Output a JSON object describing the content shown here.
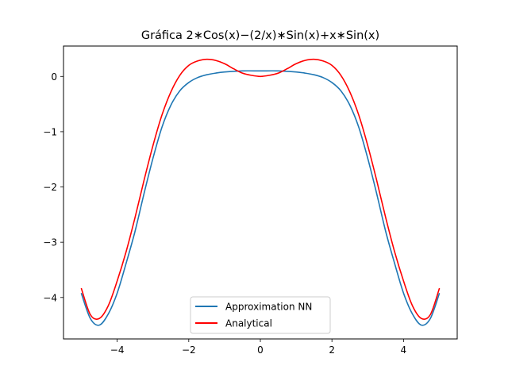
{
  "chart_data": {
    "type": "line",
    "title": "Gráfica 2∗Cos(x)−(2/x)∗Sin(x)+x∗Sin(x)",
    "xlabel": "",
    "ylabel": "",
    "xlim": [
      -5.5,
      5.5
    ],
    "ylim": [
      -4.75,
      0.55
    ],
    "xticks": [
      -4,
      -2,
      0,
      2,
      4
    ],
    "yticks": [
      0,
      -1,
      -2,
      -3,
      -4
    ],
    "xtick_labels": [
      "−4",
      "−2",
      "0",
      "2",
      "4"
    ],
    "ytick_labels": [
      "0",
      "−1",
      "−2",
      "−3",
      "−4"
    ],
    "grid": false,
    "legend_position": "bottom-center",
    "series": [
      {
        "name": "Approximation NN",
        "color": "#1f77b4",
        "x": [
          -5.0,
          -4.75,
          -4.5,
          -4.25,
          -4.0,
          -3.75,
          -3.5,
          -3.25,
          -3.0,
          -2.75,
          -2.5,
          -2.25,
          -2.0,
          -1.75,
          -1.5,
          -1.25,
          -1.0,
          -0.5,
          0.0,
          0.5,
          1.0,
          1.25,
          1.5,
          1.75,
          2.0,
          2.25,
          2.5,
          2.75,
          3.0,
          3.25,
          3.5,
          3.75,
          4.0,
          4.25,
          4.5,
          4.75,
          5.0
        ],
        "y": [
          -3.93,
          -4.38,
          -4.5,
          -4.3,
          -3.92,
          -3.38,
          -2.8,
          -2.12,
          -1.48,
          -0.92,
          -0.52,
          -0.26,
          -0.11,
          -0.02,
          0.03,
          0.06,
          0.08,
          0.1,
          0.1,
          0.1,
          0.08,
          0.06,
          0.03,
          -0.02,
          -0.11,
          -0.26,
          -0.52,
          -0.92,
          -1.48,
          -2.12,
          -2.8,
          -3.38,
          -3.92,
          -4.3,
          -4.5,
          -4.38,
          -3.93
        ]
      },
      {
        "name": "Analytical",
        "color": "#ff0000",
        "x": [
          -5.0,
          -4.75,
          -4.5,
          -4.25,
          -4.0,
          -3.75,
          -3.5,
          -3.25,
          -3.0,
          -2.75,
          -2.5,
          -2.25,
          -2.0,
          -1.75,
          -1.5,
          -1.25,
          -1.0,
          -0.75,
          -0.5,
          -0.25,
          0.0,
          0.25,
          0.5,
          0.75,
          1.0,
          1.25,
          1.5,
          1.75,
          2.0,
          2.25,
          2.5,
          2.75,
          3.0,
          3.25,
          3.5,
          3.75,
          4.0,
          4.25,
          4.5,
          4.75,
          5.0
        ],
        "y": [
          -3.84,
          -4.31,
          -4.38,
          -4.15,
          -3.7,
          -3.17,
          -2.55,
          -1.88,
          -1.25,
          -0.7,
          -0.28,
          0.02,
          0.2,
          0.28,
          0.31,
          0.29,
          0.23,
          0.14,
          0.06,
          0.02,
          0.0,
          0.02,
          0.06,
          0.14,
          0.23,
          0.29,
          0.31,
          0.28,
          0.2,
          0.02,
          -0.28,
          -0.7,
          -1.25,
          -1.88,
          -2.55,
          -3.17,
          -3.7,
          -4.15,
          -4.38,
          -4.31,
          -3.84
        ]
      }
    ]
  }
}
